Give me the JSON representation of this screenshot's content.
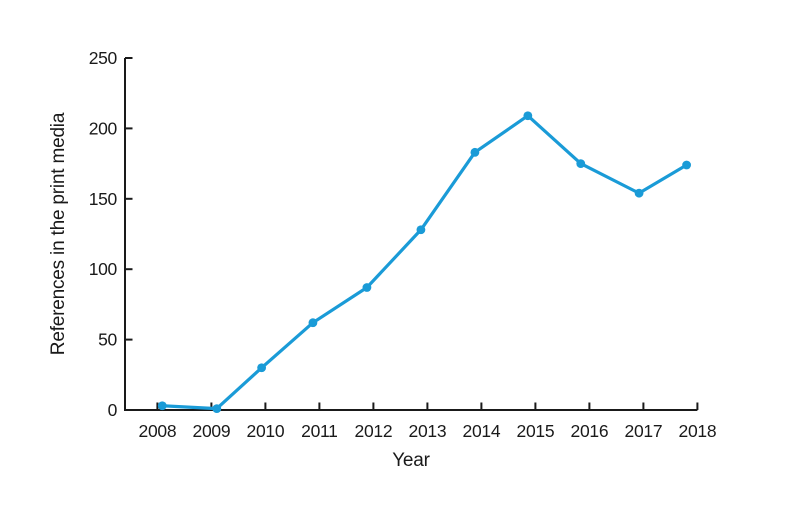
{
  "style": {
    "background": "#ffffff",
    "axis_color": "#1a1a1a",
    "text_color": "#1a1a1a",
    "accent_line_color": "#1a9bd7"
  },
  "chart_data": {
    "type": "line",
    "title": "",
    "xlabel": "Year",
    "ylabel": "References in the print media",
    "x_ticks": [
      2008,
      2009,
      2010,
      2011,
      2012,
      2013,
      2014,
      2015,
      2016,
      2017,
      2018
    ],
    "x_tick_labels": [
      "2008",
      "2009",
      "2010",
      "2011",
      "2012",
      "2013",
      "2014",
      "2015",
      "2016",
      "2017",
      "2018"
    ],
    "y_ticks": [
      0,
      50,
      100,
      150,
      200,
      250
    ],
    "y_tick_labels": [
      "0",
      "50",
      "100",
      "150",
      "200",
      "250"
    ],
    "xlim": [
      2007.4,
      2018
    ],
    "ylim": [
      0,
      250
    ],
    "grid": false,
    "legend": "none",
    "tick_direction": "in",
    "series": [
      {
        "name": "References in the print media",
        "color": "#1a9bd7",
        "marker": "circle",
        "x": [
          2008.09,
          2009.1,
          2009.93,
          2010.88,
          2011.88,
          2012.88,
          2013.88,
          2014.86,
          2015.84,
          2016.92,
          2017.8
        ],
        "y": [
          3,
          1,
          30,
          62,
          87,
          128,
          183,
          209,
          175,
          154,
          174
        ]
      }
    ]
  }
}
